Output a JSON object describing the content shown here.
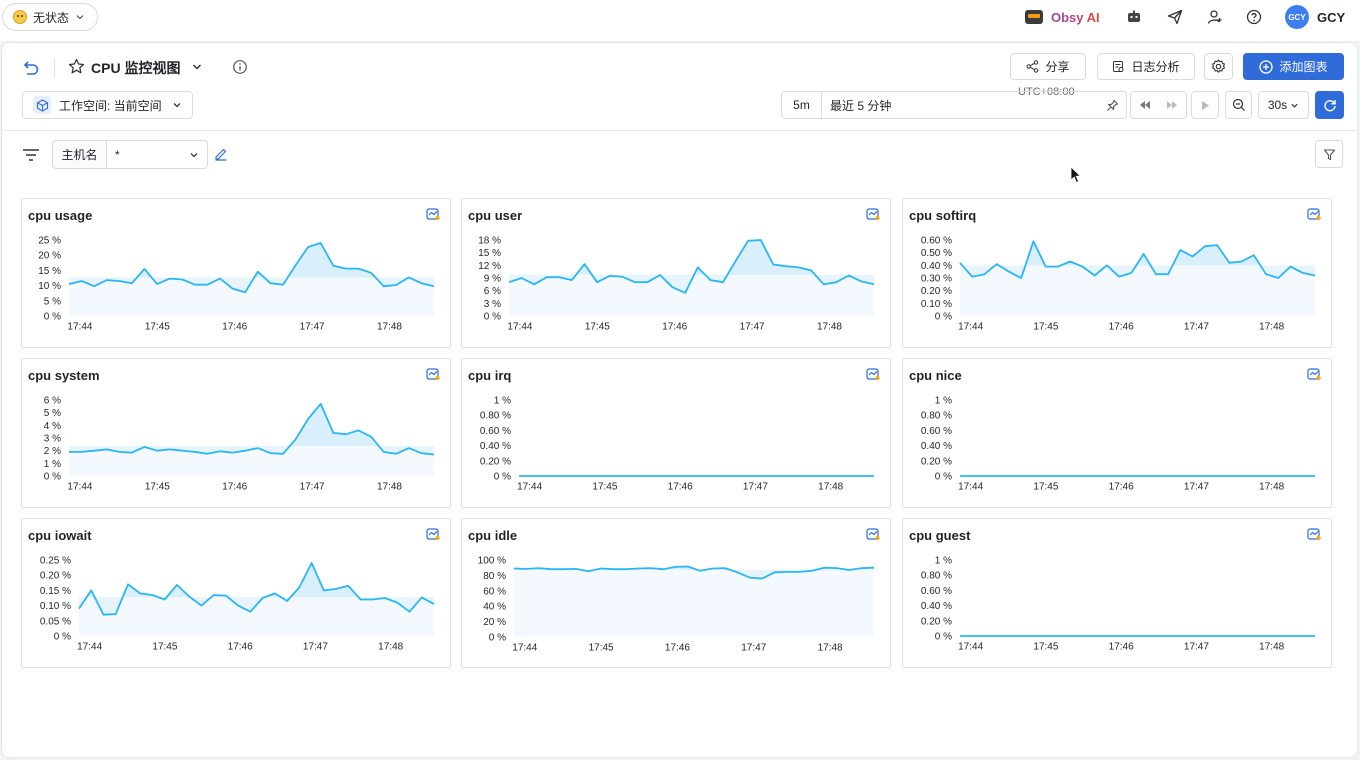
{
  "topbar": {
    "status_label": "无状态",
    "ai_label": "Obsy AI",
    "avatar_initials": "GCY",
    "username": "GCY"
  },
  "header": {
    "title": "CPU 监控视图",
    "share_label": "分享",
    "log_analysis_label": "日志分析",
    "add_chart_label": "添加图表",
    "workspace_label": "工作空间: 当前空间",
    "timezone": "UTC+08:00",
    "quick_range": "5m",
    "range_label": "最近 5 分钟",
    "refresh_interval": "30s"
  },
  "filter": {
    "host_label": "主机名",
    "host_value": "*"
  },
  "colors": {
    "line": "#29b6f6",
    "fill": "#d4ecfb",
    "primary": "#2f6bd9"
  },
  "x_ticks": [
    "17:44",
    "17:45",
    "17:46",
    "17:47",
    "17:48"
  ],
  "chart_data": [
    {
      "type": "area",
      "title": "cpu usage",
      "yticks": [
        "25 %",
        "20 %",
        "15 %",
        "10 %",
        "5 %",
        "0 %"
      ],
      "ymax": 25,
      "values": [
        10.5,
        11.5,
        9.8,
        11.8,
        11.5,
        10.8,
        15.5,
        10.5,
        12.3,
        12,
        10.3,
        10.3,
        12.3,
        9,
        7.8,
        14.6,
        10.8,
        10.3,
        16.7,
        22.7,
        24,
        16.5,
        15.6,
        15.6,
        14.2,
        9.8,
        10.2,
        12.7,
        10.8,
        9.8
      ]
    },
    {
      "type": "area",
      "title": "cpu user",
      "yticks": [
        "18 %",
        "15 %",
        "12 %",
        "9 %",
        "6 %",
        "3 %",
        "0 %"
      ],
      "ymax": 18,
      "values": [
        8,
        9,
        7.5,
        9.2,
        9.2,
        8.5,
        12.3,
        8,
        9.5,
        9.3,
        8,
        8,
        9.7,
        6.8,
        5.5,
        11.5,
        8.5,
        8,
        13,
        17.8,
        18,
        12.2,
        11.8,
        11.5,
        10.8,
        7.5,
        8,
        9.6,
        8.2,
        7.5
      ]
    },
    {
      "type": "area",
      "title": "cpu softirq",
      "yticks": [
        "0.60 %",
        "0.50 %",
        "0.40 %",
        "0.30 %",
        "0.20 %",
        "0.10 %",
        "0 %"
      ],
      "ymax": 0.6,
      "values": [
        0.42,
        0.31,
        0.33,
        0.41,
        0.35,
        0.3,
        0.59,
        0.39,
        0.39,
        0.43,
        0.39,
        0.32,
        0.4,
        0.31,
        0.34,
        0.49,
        0.33,
        0.33,
        0.52,
        0.47,
        0.55,
        0.56,
        0.42,
        0.43,
        0.48,
        0.33,
        0.3,
        0.39,
        0.34,
        0.32
      ]
    },
    {
      "type": "area",
      "title": "cpu system",
      "yticks": [
        "6 %",
        "5 %",
        "4 %",
        "3 %",
        "2 %",
        "1 %",
        "0 %"
      ],
      "ymax": 6,
      "values": [
        1.9,
        1.9,
        2,
        2.1,
        1.9,
        1.85,
        2.3,
        2,
        2.1,
        2,
        1.9,
        1.75,
        1.95,
        1.85,
        2,
        2.2,
        1.8,
        1.75,
        2.9,
        4.5,
        5.7,
        3.4,
        3.3,
        3.6,
        3.1,
        1.9,
        1.75,
        2.2,
        1.8,
        1.7
      ]
    },
    {
      "type": "area",
      "title": "cpu irq",
      "yticks": [
        "1 %",
        "0.80 %",
        "0.60 %",
        "0.40 %",
        "0.20 %",
        "0 %"
      ],
      "ymax": 1,
      "values": [
        0,
        0,
        0,
        0,
        0,
        0,
        0,
        0,
        0,
        0,
        0,
        0,
        0,
        0,
        0,
        0,
        0,
        0,
        0,
        0,
        0,
        0,
        0,
        0,
        0,
        0,
        0,
        0,
        0,
        0
      ]
    },
    {
      "type": "area",
      "title": "cpu nice",
      "yticks": [
        "1 %",
        "0.80 %",
        "0.60 %",
        "0.40 %",
        "0.20 %",
        "0 %"
      ],
      "ymax": 1,
      "values": [
        0,
        0,
        0,
        0,
        0,
        0,
        0,
        0,
        0,
        0,
        0,
        0,
        0,
        0,
        0,
        0,
        0,
        0,
        0,
        0,
        0,
        0,
        0,
        0,
        0,
        0,
        0,
        0,
        0,
        0
      ]
    },
    {
      "type": "area",
      "title": "cpu iowait",
      "yticks": [
        "0.25 %",
        "0.20 %",
        "0.15 %",
        "0.10 %",
        "0.05 %",
        "0 %"
      ],
      "ymax": 0.25,
      "values": [
        0.09,
        0.15,
        0.07,
        0.072,
        0.17,
        0.14,
        0.135,
        0.12,
        0.168,
        0.13,
        0.1,
        0.135,
        0.133,
        0.1,
        0.08,
        0.125,
        0.14,
        0.115,
        0.16,
        0.24,
        0.15,
        0.155,
        0.165,
        0.12,
        0.12,
        0.125,
        0.11,
        0.08,
        0.127,
        0.105
      ]
    },
    {
      "type": "area",
      "title": "cpu idle",
      "yticks": [
        "100 %",
        "80 %",
        "60 %",
        "40 %",
        "20 %",
        "0 %"
      ],
      "ymax": 100,
      "values": [
        89,
        88.5,
        89.5,
        88,
        88,
        88.5,
        85.5,
        89,
        88,
        88,
        89,
        89.5,
        88,
        91,
        91.5,
        86,
        89,
        89.5,
        84,
        77,
        76,
        84,
        84.5,
        84.5,
        86,
        90,
        89.5,
        87,
        89.5,
        90
      ]
    },
    {
      "type": "area",
      "title": "cpu guest",
      "yticks": [
        "1 %",
        "0.80 %",
        "0.60 %",
        "0.40 %",
        "0.20 %",
        "0 %"
      ],
      "ymax": 1,
      "values": [
        0,
        0,
        0,
        0,
        0,
        0,
        0,
        0,
        0,
        0,
        0,
        0,
        0,
        0,
        0,
        0,
        0,
        0,
        0,
        0,
        0,
        0,
        0,
        0,
        0,
        0,
        0,
        0,
        0,
        0
      ]
    }
  ]
}
